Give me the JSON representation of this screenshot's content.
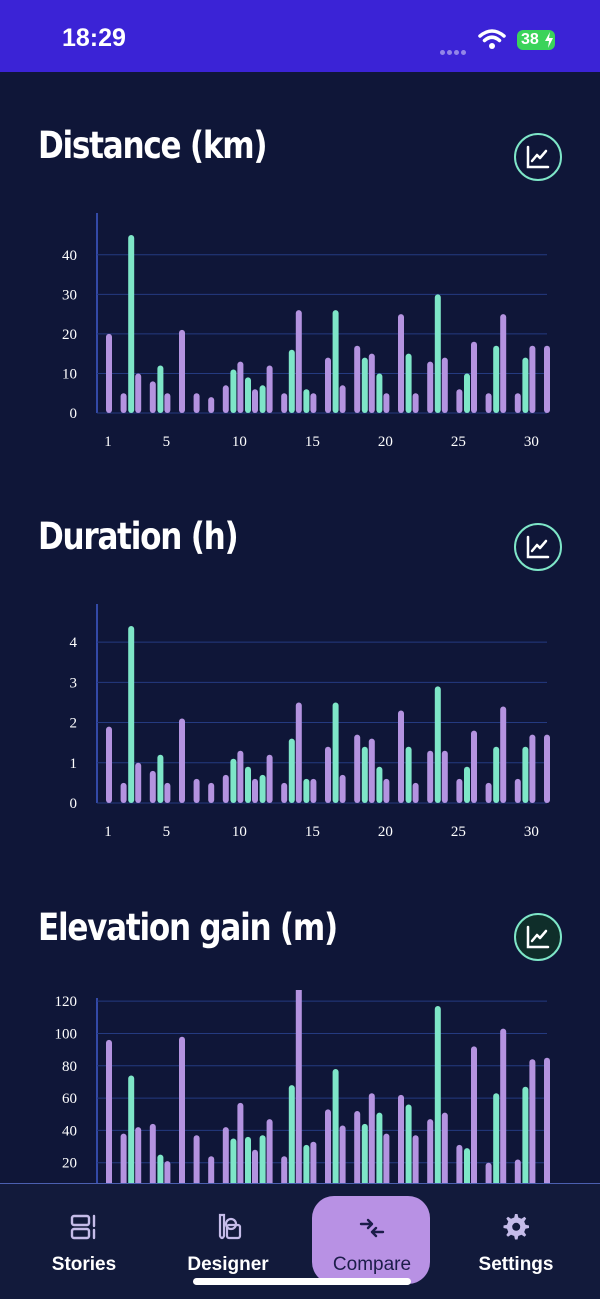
{
  "status": {
    "time": "18:29",
    "battery": "38"
  },
  "sections": [
    {
      "title": "Distance (km)"
    },
    {
      "title": "Duration (h)"
    },
    {
      "title": "Elevation gain (m)"
    }
  ],
  "colors": {
    "purple": "#b493e0",
    "mint": "#7ee6c8",
    "bg": "#0f1638",
    "grid": "#243a80",
    "status_bar": "#3b23d6"
  },
  "chart_data": [
    {
      "type": "bar",
      "xticks": [
        "1",
        "5",
        "10",
        "15",
        "20",
        "25",
        "30"
      ],
      "ylim": [
        0,
        45
      ],
      "yticks": [
        "0",
        "10",
        "20",
        "30",
        "40"
      ],
      "series": [
        {
          "x": [
            1,
            2,
            3,
            4,
            5,
            6,
            7,
            8,
            9,
            10,
            11,
            12,
            13,
            14,
            15,
            16,
            17,
            18,
            19,
            20,
            21,
            22,
            23,
            24,
            25,
            26,
            27,
            28,
            29,
            30,
            31
          ],
          "values": [
            20,
            5,
            10,
            8,
            5,
            21,
            5,
            4,
            7,
            13,
            6,
            12,
            5,
            26,
            5,
            14,
            7,
            17,
            15,
            5,
            25,
            5,
            13,
            14,
            6,
            18,
            5,
            25,
            5,
            17,
            17
          ]
        },
        {
          "x": [
            3,
            5,
            10,
            11,
            12,
            14,
            15,
            17,
            19,
            20,
            22,
            24,
            26,
            28,
            30
          ],
          "values": [
            45,
            12,
            11,
            9,
            7,
            16,
            6,
            26,
            14,
            10,
            15,
            30,
            10,
            17,
            14
          ]
        }
      ]
    },
    {
      "type": "bar",
      "xticks": [
        "1",
        "5",
        "10",
        "15",
        "20",
        "25",
        "30"
      ],
      "ylim": [
        0,
        4.5
      ],
      "yticks": [
        "0",
        "1",
        "2",
        "3",
        "4"
      ],
      "series": [
        {
          "x": [
            1,
            2,
            3,
            4,
            5,
            6,
            7,
            8,
            9,
            10,
            11,
            12,
            13,
            14,
            15,
            16,
            17,
            18,
            19,
            20,
            21,
            22,
            23,
            24,
            25,
            26,
            27,
            28,
            29,
            30,
            31
          ],
          "values": [
            1.9,
            0.5,
            1.0,
            0.8,
            0.5,
            2.1,
            0.6,
            0.5,
            0.7,
            1.3,
            0.6,
            1.2,
            0.5,
            2.5,
            0.6,
            1.4,
            0.7,
            1.7,
            1.6,
            0.6,
            2.3,
            0.5,
            1.3,
            1.3,
            0.6,
            1.8,
            0.5,
            2.4,
            0.6,
            1.7,
            1.7
          ]
        },
        {
          "x": [
            3,
            5,
            10,
            11,
            12,
            14,
            15,
            17,
            19,
            20,
            22,
            24,
            26,
            28,
            30
          ],
          "values": [
            4.4,
            1.2,
            1.1,
            0.9,
            0.7,
            1.6,
            0.6,
            2.5,
            1.4,
            0.9,
            1.4,
            2.9,
            0.9,
            1.4,
            1.4
          ]
        }
      ]
    },
    {
      "type": "bar",
      "xticks": [],
      "ylim": [
        0,
        130
      ],
      "yticks": [
        "20",
        "40",
        "60",
        "80",
        "100",
        "120"
      ],
      "series": [
        {
          "x": [
            1,
            2,
            3,
            4,
            5,
            6,
            7,
            8,
            9,
            10,
            11,
            12,
            13,
            14,
            15,
            16,
            17,
            18,
            19,
            20,
            21,
            22,
            23,
            24,
            25,
            26,
            27,
            28,
            29,
            30,
            31
          ],
          "values": [
            96,
            38,
            42,
            44,
            21,
            98,
            37,
            24,
            42,
            57,
            28,
            47,
            24,
            132,
            33,
            53,
            43,
            52,
            63,
            38,
            62,
            37,
            47,
            51,
            31,
            92,
            20,
            103,
            22,
            84,
            85
          ]
        },
        {
          "x": [
            3,
            5,
            10,
            11,
            12,
            14,
            15,
            17,
            19,
            20,
            22,
            24,
            26,
            28,
            30
          ],
          "values": [
            74,
            25,
            35,
            36,
            37,
            68,
            31,
            78,
            44,
            51,
            56,
            117,
            29,
            63,
            67
          ]
        }
      ]
    }
  ],
  "tabs": [
    {
      "label": "Stories",
      "icon": "stories-icon"
    },
    {
      "label": "Designer",
      "icon": "designer-icon"
    },
    {
      "label": "Compare",
      "icon": "compare-icon"
    },
    {
      "label": "Settings",
      "icon": "gear-icon"
    }
  ]
}
